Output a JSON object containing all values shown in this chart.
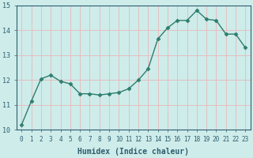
{
  "x": [
    0,
    1,
    2,
    3,
    4,
    5,
    6,
    7,
    8,
    9,
    10,
    11,
    12,
    13,
    14,
    15,
    16,
    17,
    18,
    19,
    20,
    21,
    22,
    23
  ],
  "y": [
    10.2,
    11.15,
    12.05,
    12.2,
    11.95,
    11.85,
    11.45,
    11.45,
    11.4,
    11.45,
    11.5,
    11.65,
    12.0,
    12.45,
    13.65,
    14.1,
    14.4,
    14.4,
    14.8,
    14.45,
    14.4,
    13.85,
    13.85,
    13.3
  ],
  "line_color": "#2e7d6e",
  "marker": "D",
  "marker_size": 2.5,
  "bg_color": "#ceecea",
  "grid_color": "#e8b8b8",
  "xlabel": "Humidex (Indice chaleur)",
  "ylim": [
    10,
    15
  ],
  "xlim": [
    -0.5,
    23.5
  ],
  "yticks": [
    10,
    11,
    12,
    13,
    14,
    15
  ],
  "xticks": [
    0,
    1,
    2,
    3,
    4,
    5,
    6,
    7,
    8,
    9,
    10,
    11,
    12,
    13,
    14,
    15,
    16,
    17,
    18,
    19,
    20,
    21,
    22,
    23
  ],
  "font_color": "#2e5e6e",
  "xlabel_fontsize": 7,
  "tick_fontsize": 5.5,
  "ytick_fontsize": 6
}
